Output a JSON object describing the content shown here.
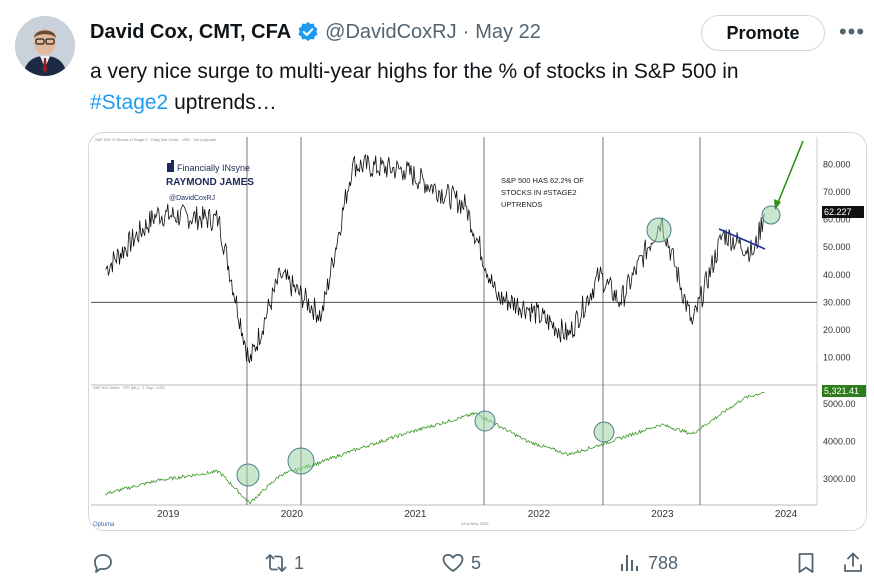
{
  "author": {
    "name": "David Cox, CMT, CFA",
    "handle": "@DavidCoxRJ",
    "separator": "·",
    "date": "May 22"
  },
  "promote_label": "Promote",
  "more_icon": "•••",
  "tweet": {
    "text_before": "a very nice surge to multi-year highs for the % of stocks in S&P 500 in",
    "hashtag": "#Stage2",
    "text_after": " uptrends…"
  },
  "chart": {
    "logo_line1": "Financially INsyne",
    "logo_line2": "RAYMOND JAMES",
    "logo_handle": "@DavidCoxRJ",
    "annotation": [
      "S&P 500 HAS 62.2% OF",
      "STOCKS IN #STAGE2",
      "UPTRENDS"
    ],
    "top_header": "S&P 500 % Stocks in Stage 2 · Daily Bar Chart · USD · No Logscale",
    "bottom_header": "S&P 500 Index · SPI (ML) · 1 Day · USD",
    "date_note": "22nd May 2024",
    "watermark": "Optuma",
    "last_value_top": "62.227",
    "last_value_bottom": "5,321.41",
    "colors": {
      "top_line": "#111111",
      "bottom_line": "#3f9a2a",
      "trend": "#1f2a9f",
      "arrow": "#2f8f17",
      "circle": "#9bd4a3",
      "label_bg": "#111111",
      "label_bg2": "#2e7d1c"
    }
  },
  "chart_data": [
    {
      "type": "line",
      "series": [
        {
          "values_note": "",
          "x": [
            "2019-01",
            "2019-06",
            "2019-12",
            "2020-03",
            "2020-06",
            "2020-10",
            "2021-01",
            "2021-06",
            "2021-12",
            "2022-03",
            "2022-06",
            "2022-10",
            "2023-01",
            "2023-03",
            "2023-07",
            "2023-10",
            "2024-01",
            "2024-04",
            "2024-05"
          ],
          "y": [
            42,
            62,
            60,
            8,
            40,
            25,
            80,
            78,
            65,
            32,
            28,
            18,
            40,
            30,
            60,
            22,
            55,
            48,
            62.2
          ]
        }
      ],
      "ylim": [
        0,
        90
      ],
      "yticks": [
        "80.000",
        "70.000",
        "60.000",
        "50.000",
        "40.000",
        "30.000",
        "20.000",
        "10.000"
      ],
      "hline": 30
    },
    {
      "type": "line",
      "series": [
        {
          "x": [
            "2019-01",
            "2019-06",
            "2019-12",
            "2020-03",
            "2020-06",
            "2020-10",
            "2021-01",
            "2021-06",
            "2022-01",
            "2022-06",
            "2022-10",
            "2023-01",
            "2023-07",
            "2023-10",
            "2024-03",
            "2024-05"
          ],
          "y": [
            2600,
            2950,
            3200,
            2350,
            3100,
            3450,
            3750,
            4200,
            4750,
            4000,
            3650,
            3900,
            4450,
            4200,
            5150,
            5321.41
          ]
        }
      ],
      "ylim": [
        2300,
        5400
      ],
      "yticks": [
        "5000.00",
        "4000.00",
        "3000.00"
      ]
    }
  ],
  "xaxis_labels": [
    "2019",
    "2020",
    "2021",
    "2022",
    "2023",
    "2024"
  ],
  "actions": {
    "reply_count": "",
    "retweet_count": "1",
    "like_count": "5",
    "views_count": "788"
  }
}
